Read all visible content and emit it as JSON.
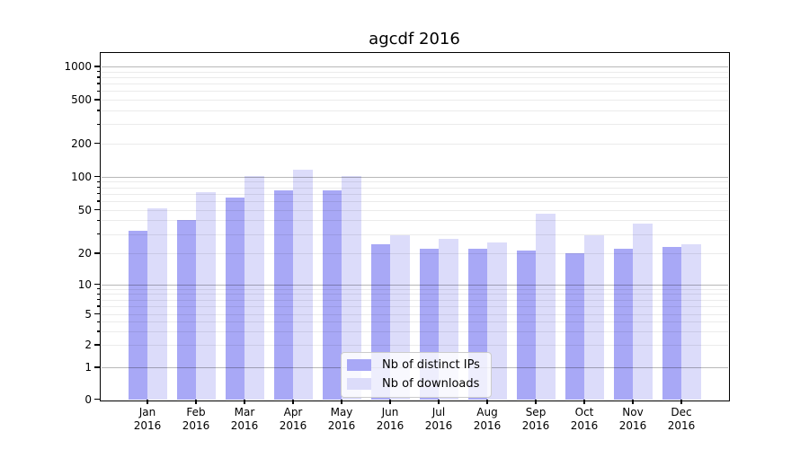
{
  "title": "agcdf 2016",
  "chart_data": {
    "type": "bar",
    "title": "agcdf 2016",
    "scale": "symlog",
    "categories": [
      "Jan",
      "Feb",
      "Mar",
      "Apr",
      "May",
      "Jun",
      "Jul",
      "Aug",
      "Sep",
      "Oct",
      "Nov",
      "Dec"
    ],
    "x_year": "2016",
    "y_ticks": [
      0,
      1,
      2,
      5,
      10,
      20,
      50,
      100,
      200,
      500,
      1000
    ],
    "ylim": [
      0,
      1300
    ],
    "grid": "horizontal major at decades, faint log minors, drawn over bars",
    "legend_position": "inside lower center",
    "series": [
      {
        "name": "Nb of distinct IPs",
        "color": "#a8a8f6",
        "values": [
          32,
          40,
          65,
          75,
          75,
          24,
          22,
          22,
          21,
          20,
          22,
          23
        ]
      },
      {
        "name": "Nb of downloads",
        "color": "#dcdcfa",
        "values": [
          51,
          72,
          102,
          115,
          102,
          29,
          27,
          25,
          46,
          29,
          37,
          24
        ]
      }
    ],
    "style": {
      "grid_major_color": "rgba(0,0,0,0.28)",
      "grid_minor_color": "rgba(0,0,0,0.08)",
      "spine_color": "#000000",
      "background": "#ffffff"
    }
  }
}
